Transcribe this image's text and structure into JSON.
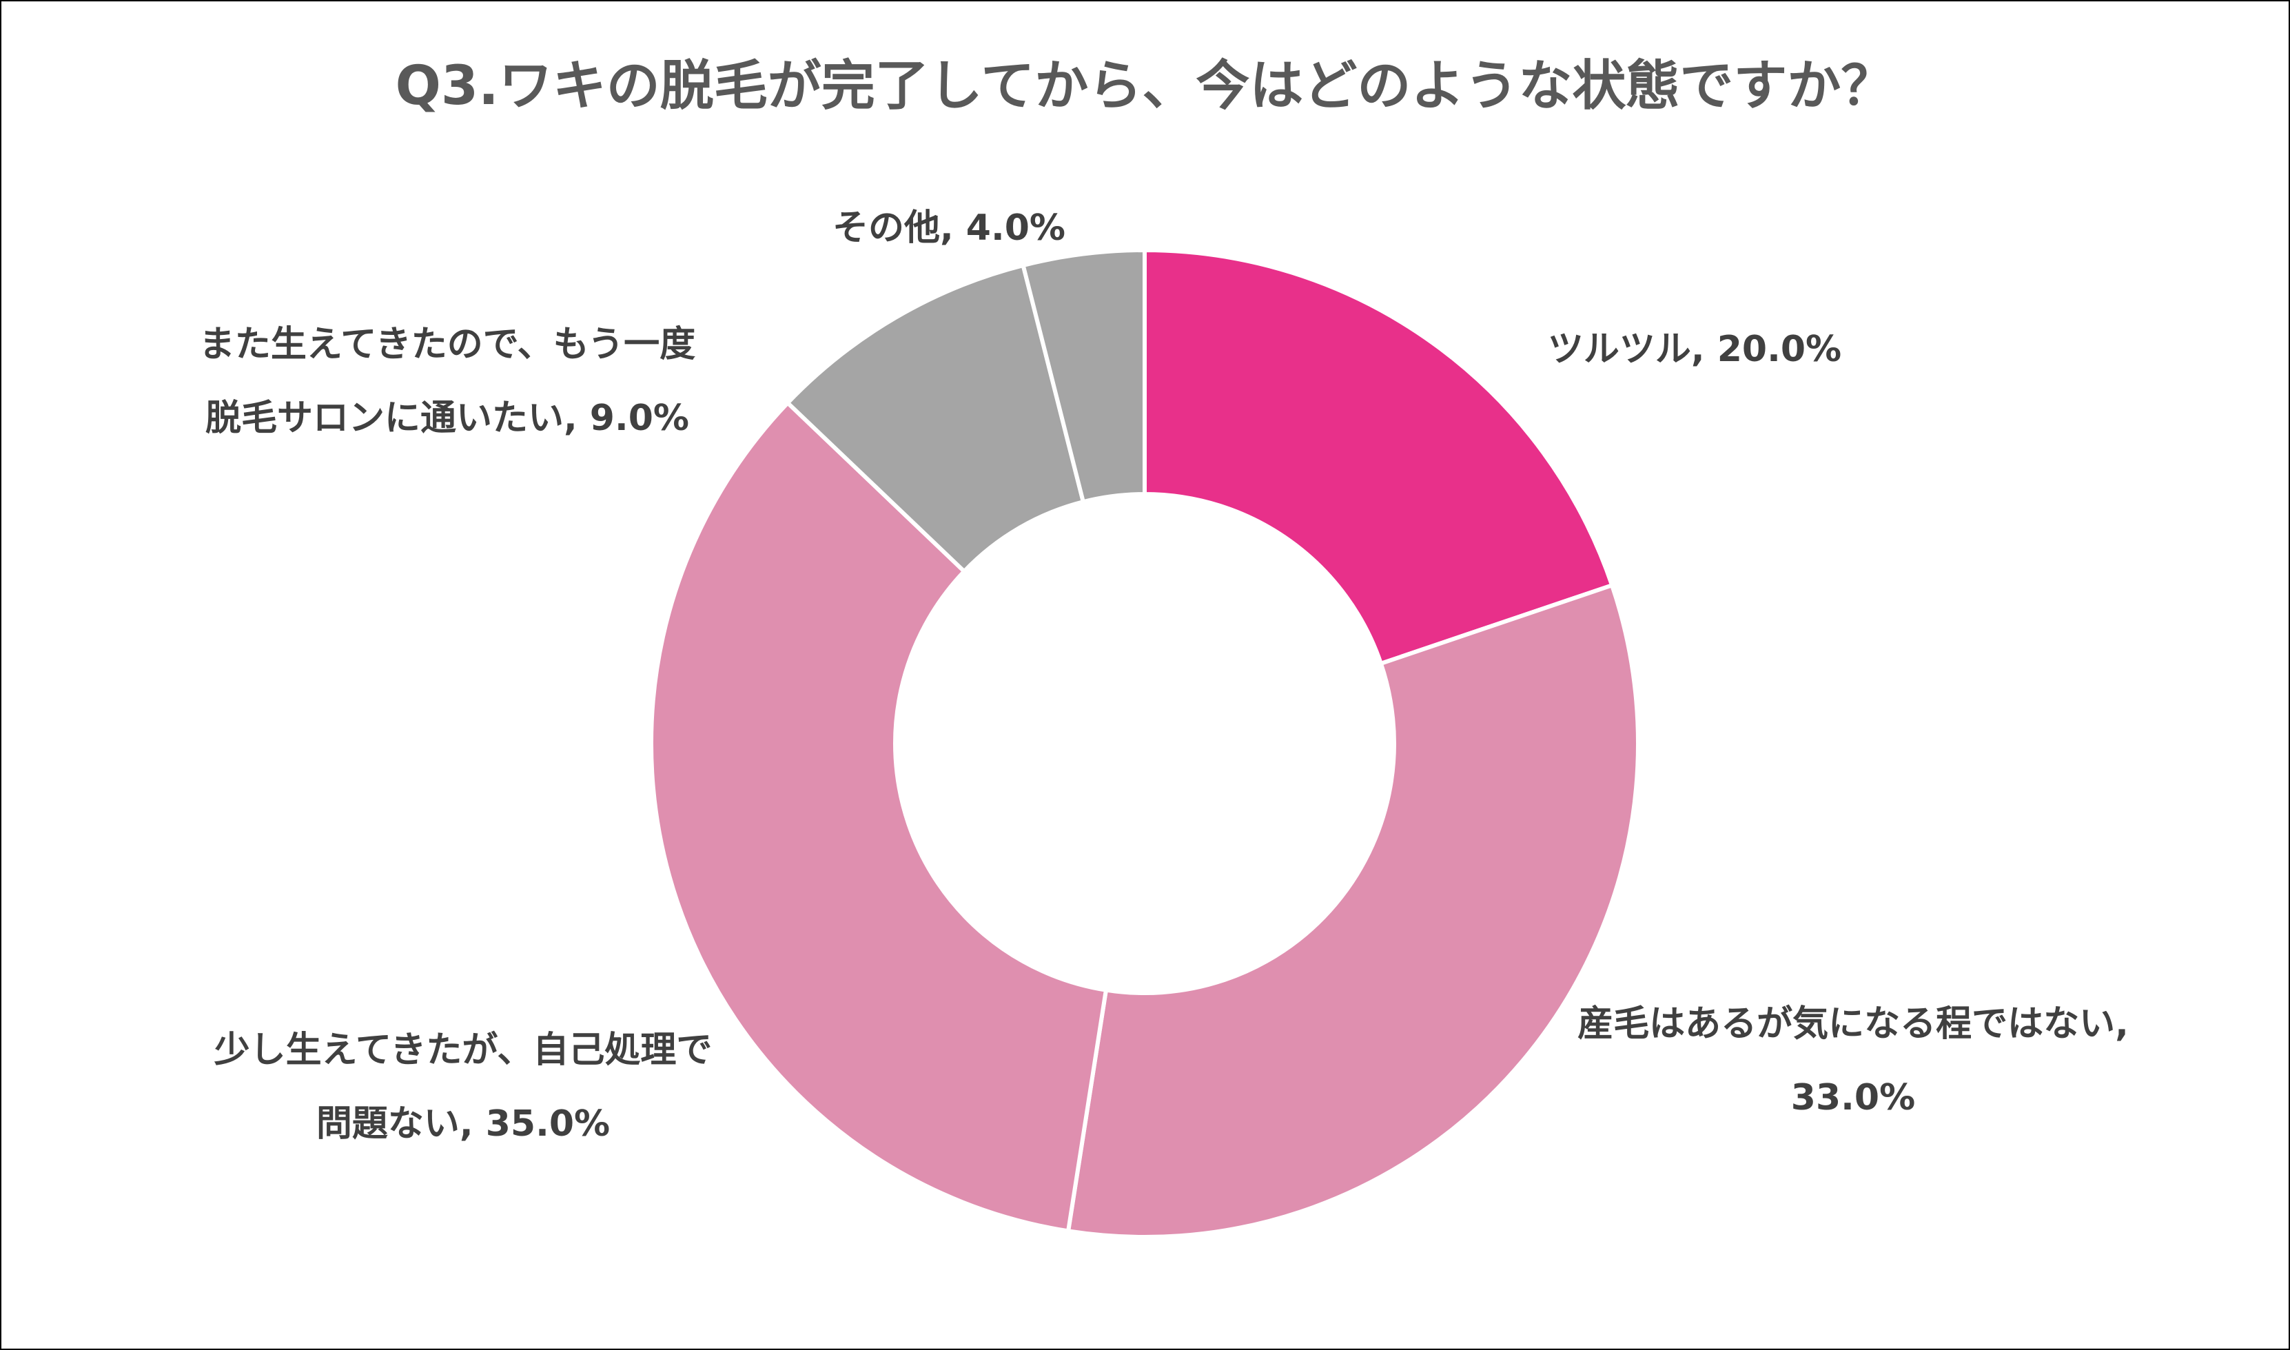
{
  "chart_data": {
    "type": "pie",
    "variant": "donut",
    "title": "Q3.ワキの脱毛が完了してから、今はどのような状態ですか？",
    "unit": "%",
    "start_angle_deg": 0,
    "direction": "clockwise",
    "legend": "none",
    "slices": [
      {
        "label": "ツルツル",
        "value": 20.0,
        "color": "#E8308A",
        "data_label": "ツルツル, 20.0%"
      },
      {
        "label": "産毛はあるが気になる程ではない",
        "value": 33.0,
        "color": "#DF8FAF",
        "data_label": [
          "産毛はあるが気になる程ではない,",
          "33.0%"
        ]
      },
      {
        "label": "少し生えてきたが、自己処理で問題ない",
        "value": 35.0,
        "color": "#DF8FAF",
        "data_label": [
          "少し生えてきたが、自己処理で",
          "問題ない, 35.0%"
        ]
      },
      {
        "label": "また生えてきたので、もう一度脱毛サロンに通いたい",
        "value": 9.0,
        "color": "#A5A5A5",
        "data_label": [
          "また生えてきたので、もう一度",
          "脱毛サロンに通いたい, 9.0%"
        ]
      },
      {
        "label": "その他",
        "value": 4.0,
        "color": "#A5A5A5",
        "data_label": "その他, 4.0%"
      }
    ]
  }
}
